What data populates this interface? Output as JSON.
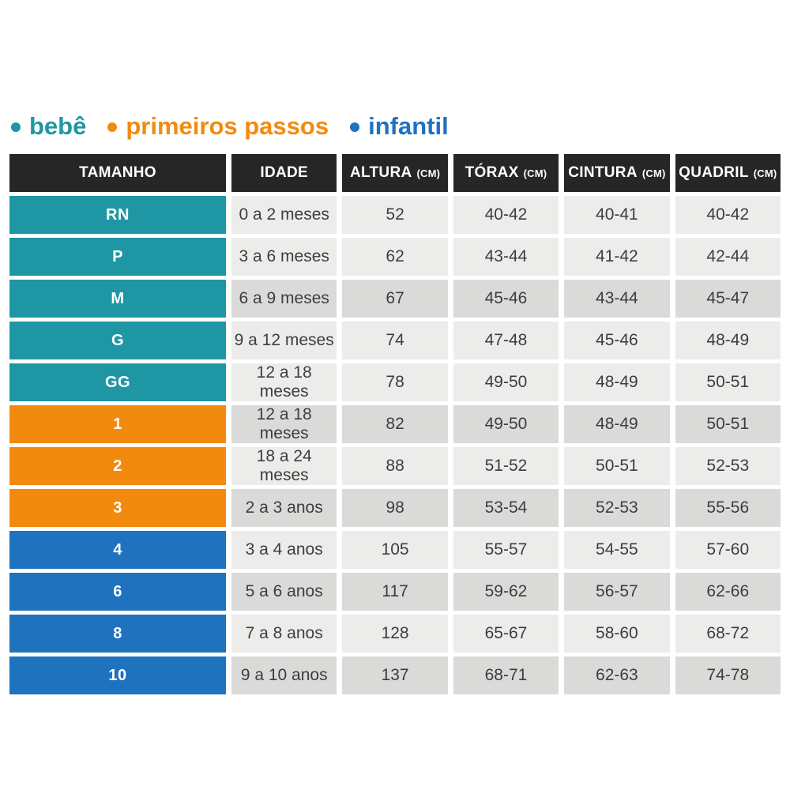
{
  "chart_data": {
    "type": "table",
    "title": "",
    "legend": [
      {
        "label": "bebê",
        "group": "bebe",
        "color": "#1F96A3"
      },
      {
        "label": "primeiros passos",
        "group": "primeiros-passos",
        "color": "#F28A10"
      },
      {
        "label": "infantil",
        "group": "infantil",
        "color": "#1F72BE"
      }
    ],
    "columns": [
      {
        "label": "TAMANHO",
        "unit": ""
      },
      {
        "label": "IDADE",
        "unit": ""
      },
      {
        "label": "ALTURA",
        "unit": "(CM)"
      },
      {
        "label": "TÓRAX",
        "unit": "(CM)"
      },
      {
        "label": "CINTURA",
        "unit": "(CM)"
      },
      {
        "label": "QUADRIL",
        "unit": "(CM)"
      }
    ],
    "rows": [
      {
        "size": "RN",
        "group": "bebe",
        "idade": "0 a 2 meses",
        "altura": "52",
        "torax": "40-42",
        "cintura": "40-41",
        "quadril": "40-42",
        "shade": "light"
      },
      {
        "size": "P",
        "group": "bebe",
        "idade": "3 a 6 meses",
        "altura": "62",
        "torax": "43-44",
        "cintura": "41-42",
        "quadril": "42-44",
        "shade": "light"
      },
      {
        "size": "M",
        "group": "bebe",
        "idade": "6 a 9 meses",
        "altura": "67",
        "torax": "45-46",
        "cintura": "43-44",
        "quadril": "45-47",
        "shade": "dark"
      },
      {
        "size": "G",
        "group": "bebe",
        "idade": "9 a 12 meses",
        "altura": "74",
        "torax": "47-48",
        "cintura": "45-46",
        "quadril": "48-49",
        "shade": "light"
      },
      {
        "size": "GG",
        "group": "bebe",
        "idade": "12 a 18 meses",
        "altura": "78",
        "torax": "49-50",
        "cintura": "48-49",
        "quadril": "50-51",
        "shade": "light"
      },
      {
        "size": "1",
        "group": "primeiros-passos",
        "idade": "12 a 18 meses",
        "altura": "82",
        "torax": "49-50",
        "cintura": "48-49",
        "quadril": "50-51",
        "shade": "dark"
      },
      {
        "size": "2",
        "group": "primeiros-passos",
        "idade": "18 a 24 meses",
        "altura": "88",
        "torax": "51-52",
        "cintura": "50-51",
        "quadril": "52-53",
        "shade": "light"
      },
      {
        "size": "3",
        "group": "primeiros-passos",
        "idade": "2 a 3 anos",
        "altura": "98",
        "torax": "53-54",
        "cintura": "52-53",
        "quadril": "55-56",
        "shade": "dark"
      },
      {
        "size": "4",
        "group": "infantil",
        "idade": "3 a 4 anos",
        "altura": "105",
        "torax": "55-57",
        "cintura": "54-55",
        "quadril": "57-60",
        "shade": "light"
      },
      {
        "size": "6",
        "group": "infantil",
        "idade": "5 a 6 anos",
        "altura": "117",
        "torax": "59-62",
        "cintura": "56-57",
        "quadril": "62-66",
        "shade": "dark"
      },
      {
        "size": "8",
        "group": "infantil",
        "idade": "7 a 8 anos",
        "altura": "128",
        "torax": "65-67",
        "cintura": "58-60",
        "quadril": "68-72",
        "shade": "light"
      },
      {
        "size": "10",
        "group": "infantil",
        "idade": "9 a 10 anos",
        "altura": "137",
        "torax": "68-71",
        "cintura": "62-63",
        "quadril": "74-78",
        "shade": "dark"
      }
    ],
    "ui_colors": {
      "header_bg": "#262626",
      "header_text": "#FFFFFF",
      "cell_light": "#ECECEA",
      "cell_dark": "#DADAD8",
      "cell_text": "#3D3D3D",
      "page_bg": "#FFFFFF"
    }
  }
}
